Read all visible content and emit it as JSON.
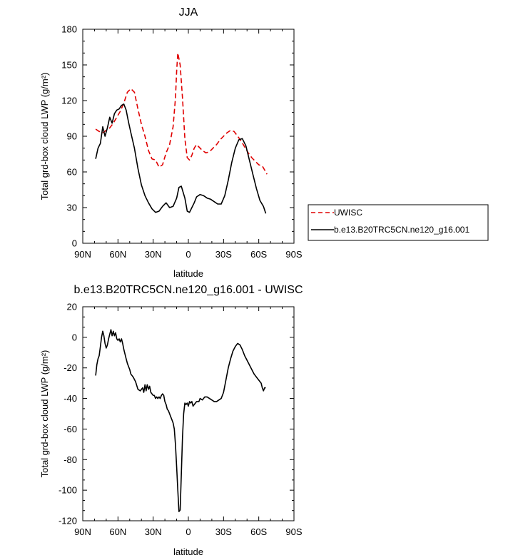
{
  "chart_data": [
    {
      "type": "line",
      "title": "JJA",
      "xlabel": "latitude",
      "ylabel": "Total grd-box cloud LWP (g/m²)",
      "xlim": [
        -90,
        90
      ],
      "ylim": [
        0,
        180
      ],
      "xticks": [
        -90,
        -60,
        -30,
        0,
        30,
        60,
        90
      ],
      "xticklabels": [
        "90N",
        "60N",
        "30N",
        "0",
        "30S",
        "60S",
        "90S"
      ],
      "yticks": [
        0,
        30,
        60,
        90,
        120,
        150,
        180
      ],
      "yticklabels": [
        "0",
        "30",
        "60",
        "90",
        "120",
        "150",
        "180"
      ],
      "grid": false,
      "legend": "right",
      "series": [
        {
          "name": "UWISC",
          "color": "#e00000",
          "dash": "dashed",
          "x": [
            -79,
            -76,
            -73,
            -70,
            -67,
            -64,
            -61,
            -58,
            -55,
            -52,
            -49,
            -46,
            -43,
            -40,
            -37,
            -34,
            -31,
            -28,
            -25,
            -22,
            -19,
            -16,
            -13,
            -11,
            -10,
            -9,
            -7,
            -5,
            -3,
            -1,
            1,
            3,
            5,
            7,
            9,
            12,
            15,
            18,
            21,
            24,
            27,
            30,
            33,
            36,
            39,
            42,
            45,
            48,
            51,
            54,
            57,
            60,
            63,
            66,
            67
          ],
          "y": [
            96,
            94,
            93,
            95,
            97,
            101,
            106,
            111,
            118,
            127,
            130,
            127,
            113,
            100,
            90,
            78,
            71,
            70,
            64,
            66,
            76,
            83,
            98,
            122,
            145,
            160,
            150,
            122,
            88,
            72,
            70,
            74,
            80,
            83,
            81,
            78,
            76,
            77,
            80,
            83,
            87,
            90,
            93,
            95,
            94,
            90,
            86,
            81,
            76,
            72,
            69,
            66,
            65,
            60,
            58
          ]
        },
        {
          "name": "b.e13.B20TRC5CN.ne120_g16.001",
          "color": "#000000",
          "dash": "solid",
          "x": [
            -79,
            -77,
            -75,
            -73,
            -71,
            -69,
            -67,
            -65,
            -63,
            -61,
            -59,
            -57,
            -55,
            -53,
            -51,
            -49,
            -46,
            -43,
            -40,
            -37,
            -34,
            -31,
            -28,
            -25,
            -22,
            -19,
            -16,
            -13,
            -10,
            -8,
            -6,
            -3,
            -1,
            1,
            3,
            5,
            7,
            10,
            13,
            16,
            19,
            22,
            25,
            28,
            31,
            34,
            37,
            40,
            43,
            46,
            49,
            52,
            55,
            58,
            61,
            64,
            66
          ],
          "y": [
            71,
            80,
            84,
            98,
            90,
            97,
            106,
            101,
            109,
            112,
            113,
            116,
            117,
            112,
            102,
            93,
            80,
            63,
            49,
            40,
            34,
            29,
            26,
            27,
            31,
            34,
            30,
            31,
            38,
            47,
            48,
            38,
            27,
            26,
            30,
            34,
            39,
            41,
            40,
            38,
            37,
            35,
            33,
            33,
            40,
            53,
            68,
            80,
            87,
            88,
            82,
            70,
            58,
            46,
            36,
            31,
            25
          ]
        }
      ]
    },
    {
      "type": "line",
      "title": "b.e13.B20TRC5CN.ne120_g16.001 - UWISC",
      "xlabel": "latitude",
      "ylabel": "Total grd-box cloud LWP (g/m²)",
      "xlim": [
        -90,
        90
      ],
      "ylim": [
        -120,
        20
      ],
      "xticks": [
        -90,
        -60,
        -30,
        0,
        30,
        60,
        90
      ],
      "xticklabels": [
        "90N",
        "60N",
        "30N",
        "0",
        "30S",
        "60S",
        "90S"
      ],
      "yticks": [
        -120,
        -100,
        -80,
        -60,
        -40,
        -20,
        0,
        20
      ],
      "yticklabels": [
        "-120",
        "-100",
        "-80",
        "-60",
        "-40",
        "-20",
        "0",
        "20"
      ],
      "grid": false,
      "series": [
        {
          "color": "#000000",
          "x": [
            -79,
            -78,
            -77,
            -76,
            -75,
            -74,
            -73,
            -72,
            -71,
            -70,
            -69,
            -68,
            -67,
            -66,
            -65,
            -64,
            -63,
            -62,
            -61,
            -60,
            -59,
            -58,
            -57,
            -56,
            -55,
            -54,
            -53,
            -52,
            -51,
            -50,
            -49,
            -47,
            -45,
            -43,
            -41,
            -39,
            -38,
            -37,
            -36,
            -35,
            -34,
            -33,
            -32,
            -31,
            -30,
            -29,
            -28,
            -27,
            -26,
            -25,
            -24,
            -23,
            -22,
            -21,
            -20,
            -19,
            -18,
            -17,
            -16,
            -15,
            -14,
            -13,
            -12,
            -11,
            -10,
            -9,
            -8,
            -7,
            -6,
            -5,
            -4,
            -3,
            -2,
            -1,
            0,
            1,
            2,
            3,
            4,
            5,
            6,
            7,
            8,
            9,
            10,
            12,
            14,
            16,
            18,
            20,
            22,
            24,
            26,
            28,
            30,
            32,
            34,
            36,
            38,
            40,
            42,
            44,
            46,
            48,
            50,
            52,
            54,
            56,
            58,
            60,
            62,
            63,
            64,
            65,
            66
          ],
          "y": [
            -25,
            -18,
            -14,
            -12,
            -6,
            0,
            4,
            1,
            -4,
            -7,
            -5,
            -1,
            2,
            5,
            1,
            4,
            1,
            3,
            -1,
            -2,
            -1,
            -3,
            -1,
            -4,
            -8,
            -11,
            -14,
            -17,
            -19,
            -21,
            -24,
            -26,
            -29,
            -34,
            -35,
            -33,
            -36,
            -31,
            -35,
            -31,
            -34,
            -32,
            -36,
            -37,
            -38,
            -38,
            -40,
            -39,
            -40,
            -39,
            -40,
            -38,
            -37,
            -38,
            -42,
            -44,
            -47,
            -48,
            -50,
            -52,
            -54,
            -56,
            -60,
            -70,
            -85,
            -100,
            -114,
            -113,
            -90,
            -65,
            -50,
            -43,
            -44,
            -43,
            -45,
            -42,
            -43,
            -42,
            -45,
            -44,
            -43,
            -42,
            -42,
            -42,
            -40,
            -41,
            -39,
            -39,
            -40,
            -41,
            -42,
            -42,
            -41,
            -40,
            -36,
            -28,
            -20,
            -14,
            -9,
            -6,
            -4,
            -5,
            -8,
            -12,
            -15,
            -18,
            -21,
            -24,
            -26,
            -28,
            -30,
            -33,
            -35,
            -33,
            -33
          ]
        }
      ]
    }
  ]
}
